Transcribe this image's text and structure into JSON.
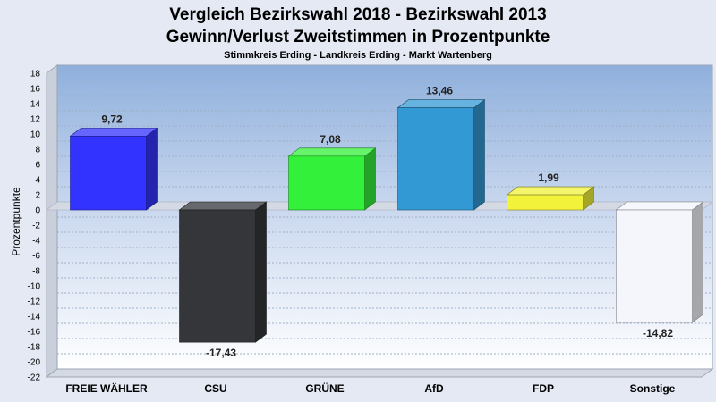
{
  "chart_data": {
    "type": "bar",
    "title": "Vergleich Bezirkswahl 2018 - Bezirkswahl 2013",
    "subtitle": "Gewinn/Verlust Zweitstimmen in Prozentpunkte",
    "caption": "Stimmkreis Erding - Landkreis Erding - Markt Wartenberg",
    "ylabel": "Prozentpunkte",
    "xlabel": "",
    "ylim": [
      -22,
      18
    ],
    "ytick_step": 2,
    "grid": true,
    "legend": "none",
    "categories": [
      "FREIE WÄHLER",
      "CSU",
      "GRÜNE",
      "AfD",
      "FDP",
      "Sonstige"
    ],
    "values": [
      9.72,
      -17.43,
      7.08,
      13.46,
      1.99,
      -14.82
    ],
    "value_labels": [
      "9,72",
      "-17,43",
      "7,08",
      "13,46",
      "1,99",
      "-14,82"
    ],
    "colors": [
      "#3333ff",
      "#34363a",
      "#33f03a",
      "#3399d4",
      "#f2f23a",
      "#f4f6fc"
    ]
  }
}
